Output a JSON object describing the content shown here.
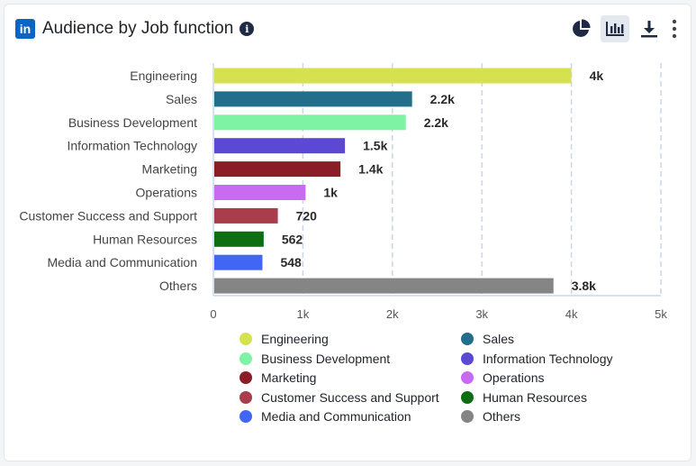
{
  "header": {
    "logo_text": "in",
    "title": "Audience by Job function",
    "info_glyph": "i"
  },
  "toolbar": {
    "pie_icon": "pie-chart-icon",
    "bar_icon": "bar-chart-icon",
    "download_icon": "download-icon",
    "more_icon": "more-vertical-icon"
  },
  "chart_data": {
    "type": "bar",
    "orientation": "horizontal",
    "categories": [
      "Engineering",
      "Sales",
      "Business Development",
      "Information Technology",
      "Marketing",
      "Operations",
      "Customer Success and Support",
      "Human Resources",
      "Media and Communication",
      "Others"
    ],
    "values": [
      4000,
      2220,
      2150,
      1470,
      1420,
      1030,
      720,
      562,
      548,
      3800
    ],
    "value_labels": [
      "4k",
      "2.2k",
      "2.2k",
      "1.5k",
      "1.4k",
      "1k",
      "720",
      "562",
      "548",
      "3.8k"
    ],
    "colors": [
      "#d6e14f",
      "#236e8a",
      "#7ef3a3",
      "#5b48d3",
      "#8b1d26",
      "#c86bf2",
      "#a93d4b",
      "#0f6e12",
      "#4166f5",
      "#858585"
    ],
    "xlim": [
      0,
      5000
    ],
    "xticks": [
      0,
      1000,
      2000,
      3000,
      4000,
      5000
    ],
    "xtick_labels": [
      "0",
      "1k",
      "2k",
      "3k",
      "4k",
      "5k"
    ],
    "grid": true,
    "legend_position": "bottom"
  }
}
